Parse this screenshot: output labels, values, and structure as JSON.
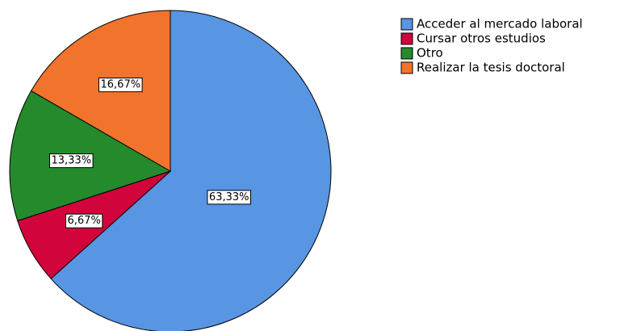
{
  "chart_data": {
    "type": "pie",
    "categories": [
      "Acceder al mercado laboral",
      "Cursar otros estudios",
      "Otro",
      "Realizar la tesis doctoral"
    ],
    "values": [
      63.33,
      6.67,
      13.33,
      16.67
    ],
    "value_labels": [
      "63,33%",
      "6,67%",
      "13,33%",
      "16,67%"
    ],
    "colors": [
      "#5895e2",
      "#d1043c",
      "#258a2c",
      "#f2742c"
    ]
  }
}
